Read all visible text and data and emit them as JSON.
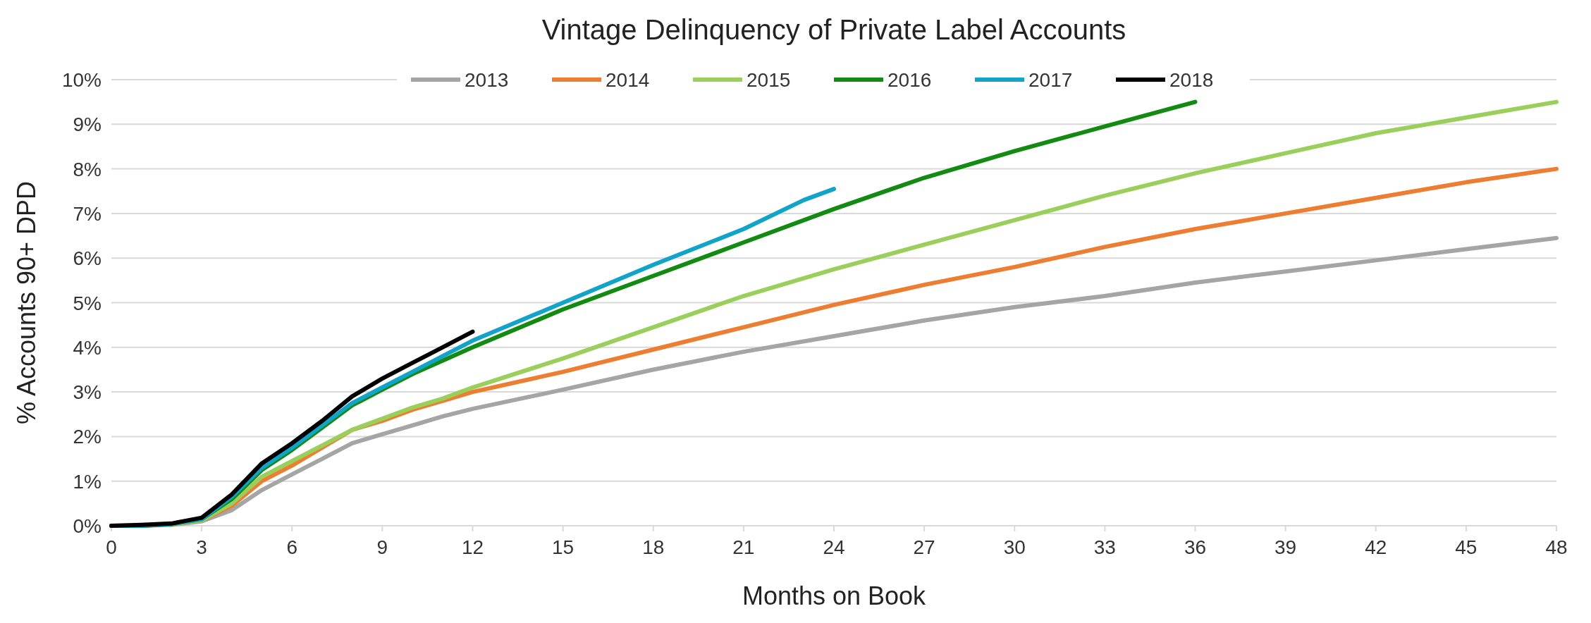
{
  "chart_data": {
    "type": "line",
    "title": "Vintage Delinquency of Private Label Accounts",
    "xlabel": "Months on Book",
    "ylabel": "% Accounts 90+ DPD",
    "xlim": [
      0,
      48
    ],
    "xticks": [
      0,
      3,
      6,
      9,
      12,
      15,
      18,
      21,
      24,
      27,
      30,
      33,
      36,
      39,
      42,
      45,
      48
    ],
    "ylim": [
      0,
      10
    ],
    "yticks": [
      {
        "value": 0,
        "label": "0%"
      },
      {
        "value": 1,
        "label": "1%"
      },
      {
        "value": 2,
        "label": "2%"
      },
      {
        "value": 3,
        "label": "3%"
      },
      {
        "value": 4,
        "label": "4%"
      },
      {
        "value": 5,
        "label": "5%"
      },
      {
        "value": 6,
        "label": "6%"
      },
      {
        "value": 7,
        "label": "7%"
      },
      {
        "value": 8,
        "label": "8%"
      },
      {
        "value": 9,
        "label": "9%"
      },
      {
        "value": 10,
        "label": "10%"
      }
    ],
    "grid": "y",
    "legend": "top",
    "marker": "none",
    "line_style": "solid",
    "series": [
      {
        "name": "2013",
        "color": "#a5a5a5",
        "x": [
          0,
          1,
          2,
          3,
          4,
          5,
          6,
          7,
          8,
          9,
          10,
          11,
          12,
          15,
          18,
          21,
          24,
          27,
          30,
          33,
          36,
          39,
          42,
          45,
          48
        ],
        "values": [
          0,
          0,
          0.02,
          0.1,
          0.35,
          0.8,
          1.15,
          1.5,
          1.85,
          2.05,
          2.25,
          2.45,
          2.62,
          3.05,
          3.5,
          3.9,
          4.25,
          4.6,
          4.9,
          5.15,
          5.45,
          5.7,
          5.95,
          6.2,
          6.45
        ]
      },
      {
        "name": "2014",
        "color": "#ed7d31",
        "x": [
          2,
          3,
          4,
          5,
          6,
          7,
          8,
          9,
          10,
          11,
          12,
          15,
          18,
          21,
          24,
          27,
          30,
          33,
          36,
          39,
          42,
          45,
          48
        ],
        "values": [
          0.03,
          0.12,
          0.45,
          1.0,
          1.35,
          1.75,
          2.15,
          2.35,
          2.6,
          2.8,
          3.0,
          3.45,
          3.95,
          4.45,
          4.95,
          5.4,
          5.8,
          6.25,
          6.65,
          7.0,
          7.35,
          7.7,
          8.0
        ]
      },
      {
        "name": "2015",
        "color": "#9bcf5b",
        "x": [
          0,
          1,
          2,
          3,
          4,
          5,
          6,
          7,
          8,
          9,
          10,
          11,
          12,
          15,
          18,
          21,
          24,
          27,
          30,
          33,
          36,
          39,
          42,
          45,
          48
        ],
        "values": [
          0,
          0,
          0.03,
          0.12,
          0.5,
          1.1,
          1.45,
          1.8,
          2.15,
          2.4,
          2.65,
          2.85,
          3.1,
          3.75,
          4.45,
          5.15,
          5.75,
          6.3,
          6.85,
          7.4,
          7.9,
          8.35,
          8.8,
          9.15,
          9.5
        ]
      },
      {
        "name": "2016",
        "color": "#138a12",
        "x": [
          0,
          1,
          2,
          3,
          4,
          5,
          6,
          7,
          8,
          9,
          10,
          11,
          12,
          15,
          18,
          21,
          24,
          27,
          30,
          33,
          36
        ],
        "values": [
          0,
          0,
          0.04,
          0.15,
          0.6,
          1.25,
          1.7,
          2.2,
          2.7,
          3.05,
          3.4,
          3.7,
          4.0,
          4.85,
          5.6,
          6.35,
          7.1,
          7.8,
          8.4,
          8.95,
          9.5
        ]
      },
      {
        "name": "2017",
        "color": "#12a3c9",
        "x": [
          0,
          1,
          2,
          3,
          4,
          5,
          6,
          7,
          8,
          9,
          10,
          11,
          12,
          15,
          18,
          21,
          23,
          24
        ],
        "values": [
          0,
          0,
          0.04,
          0.15,
          0.65,
          1.3,
          1.75,
          2.25,
          2.75,
          3.1,
          3.45,
          3.8,
          4.15,
          5.0,
          5.85,
          6.65,
          7.3,
          7.55
        ]
      },
      {
        "name": "2018",
        "color": "#000000",
        "x": [
          0,
          1,
          2,
          3,
          4,
          5,
          6,
          7,
          8,
          9,
          10,
          11,
          12
        ],
        "values": [
          0,
          0.02,
          0.05,
          0.18,
          0.7,
          1.4,
          1.85,
          2.35,
          2.9,
          3.3,
          3.65,
          4.0,
          4.35
        ]
      }
    ]
  }
}
